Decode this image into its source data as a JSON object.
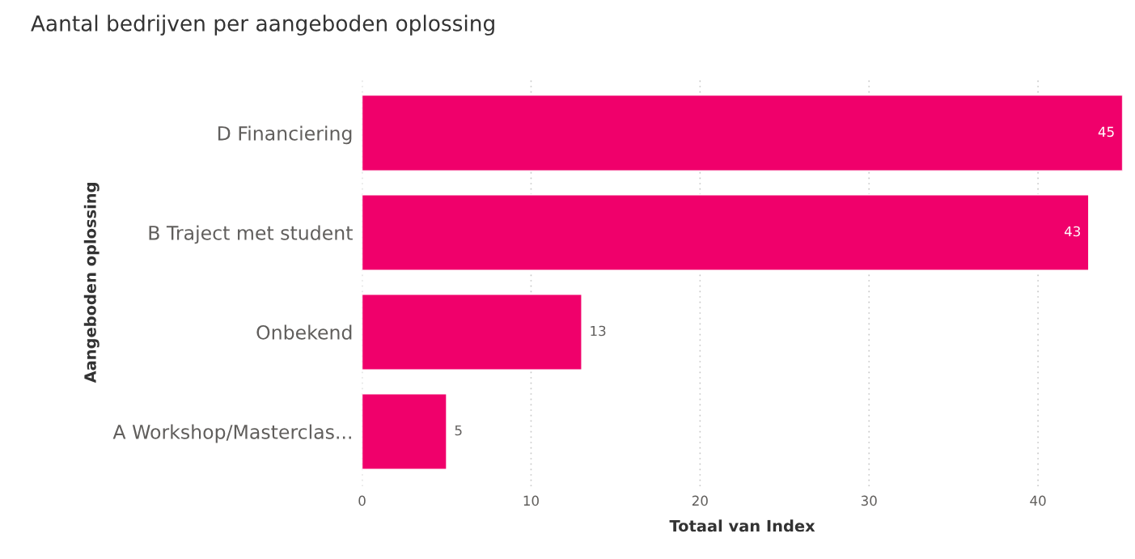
{
  "chart_data": {
    "type": "bar",
    "orientation": "horizontal",
    "title": "Aantal bedrijven per aangeboden oplossing",
    "xlabel": "Totaal van Index",
    "ylabel": "Aangeboden oplossing",
    "categories": [
      "D Financiering",
      "B Traject met student",
      "Onbekend",
      "A Workshop/Masterclas..."
    ],
    "values": [
      45,
      43,
      13,
      5
    ],
    "color": "#f0006b",
    "xlim": [
      0,
      45
    ],
    "xticks": [
      0,
      10,
      20,
      30,
      40
    ],
    "grid": "x",
    "data_labels": true
  }
}
